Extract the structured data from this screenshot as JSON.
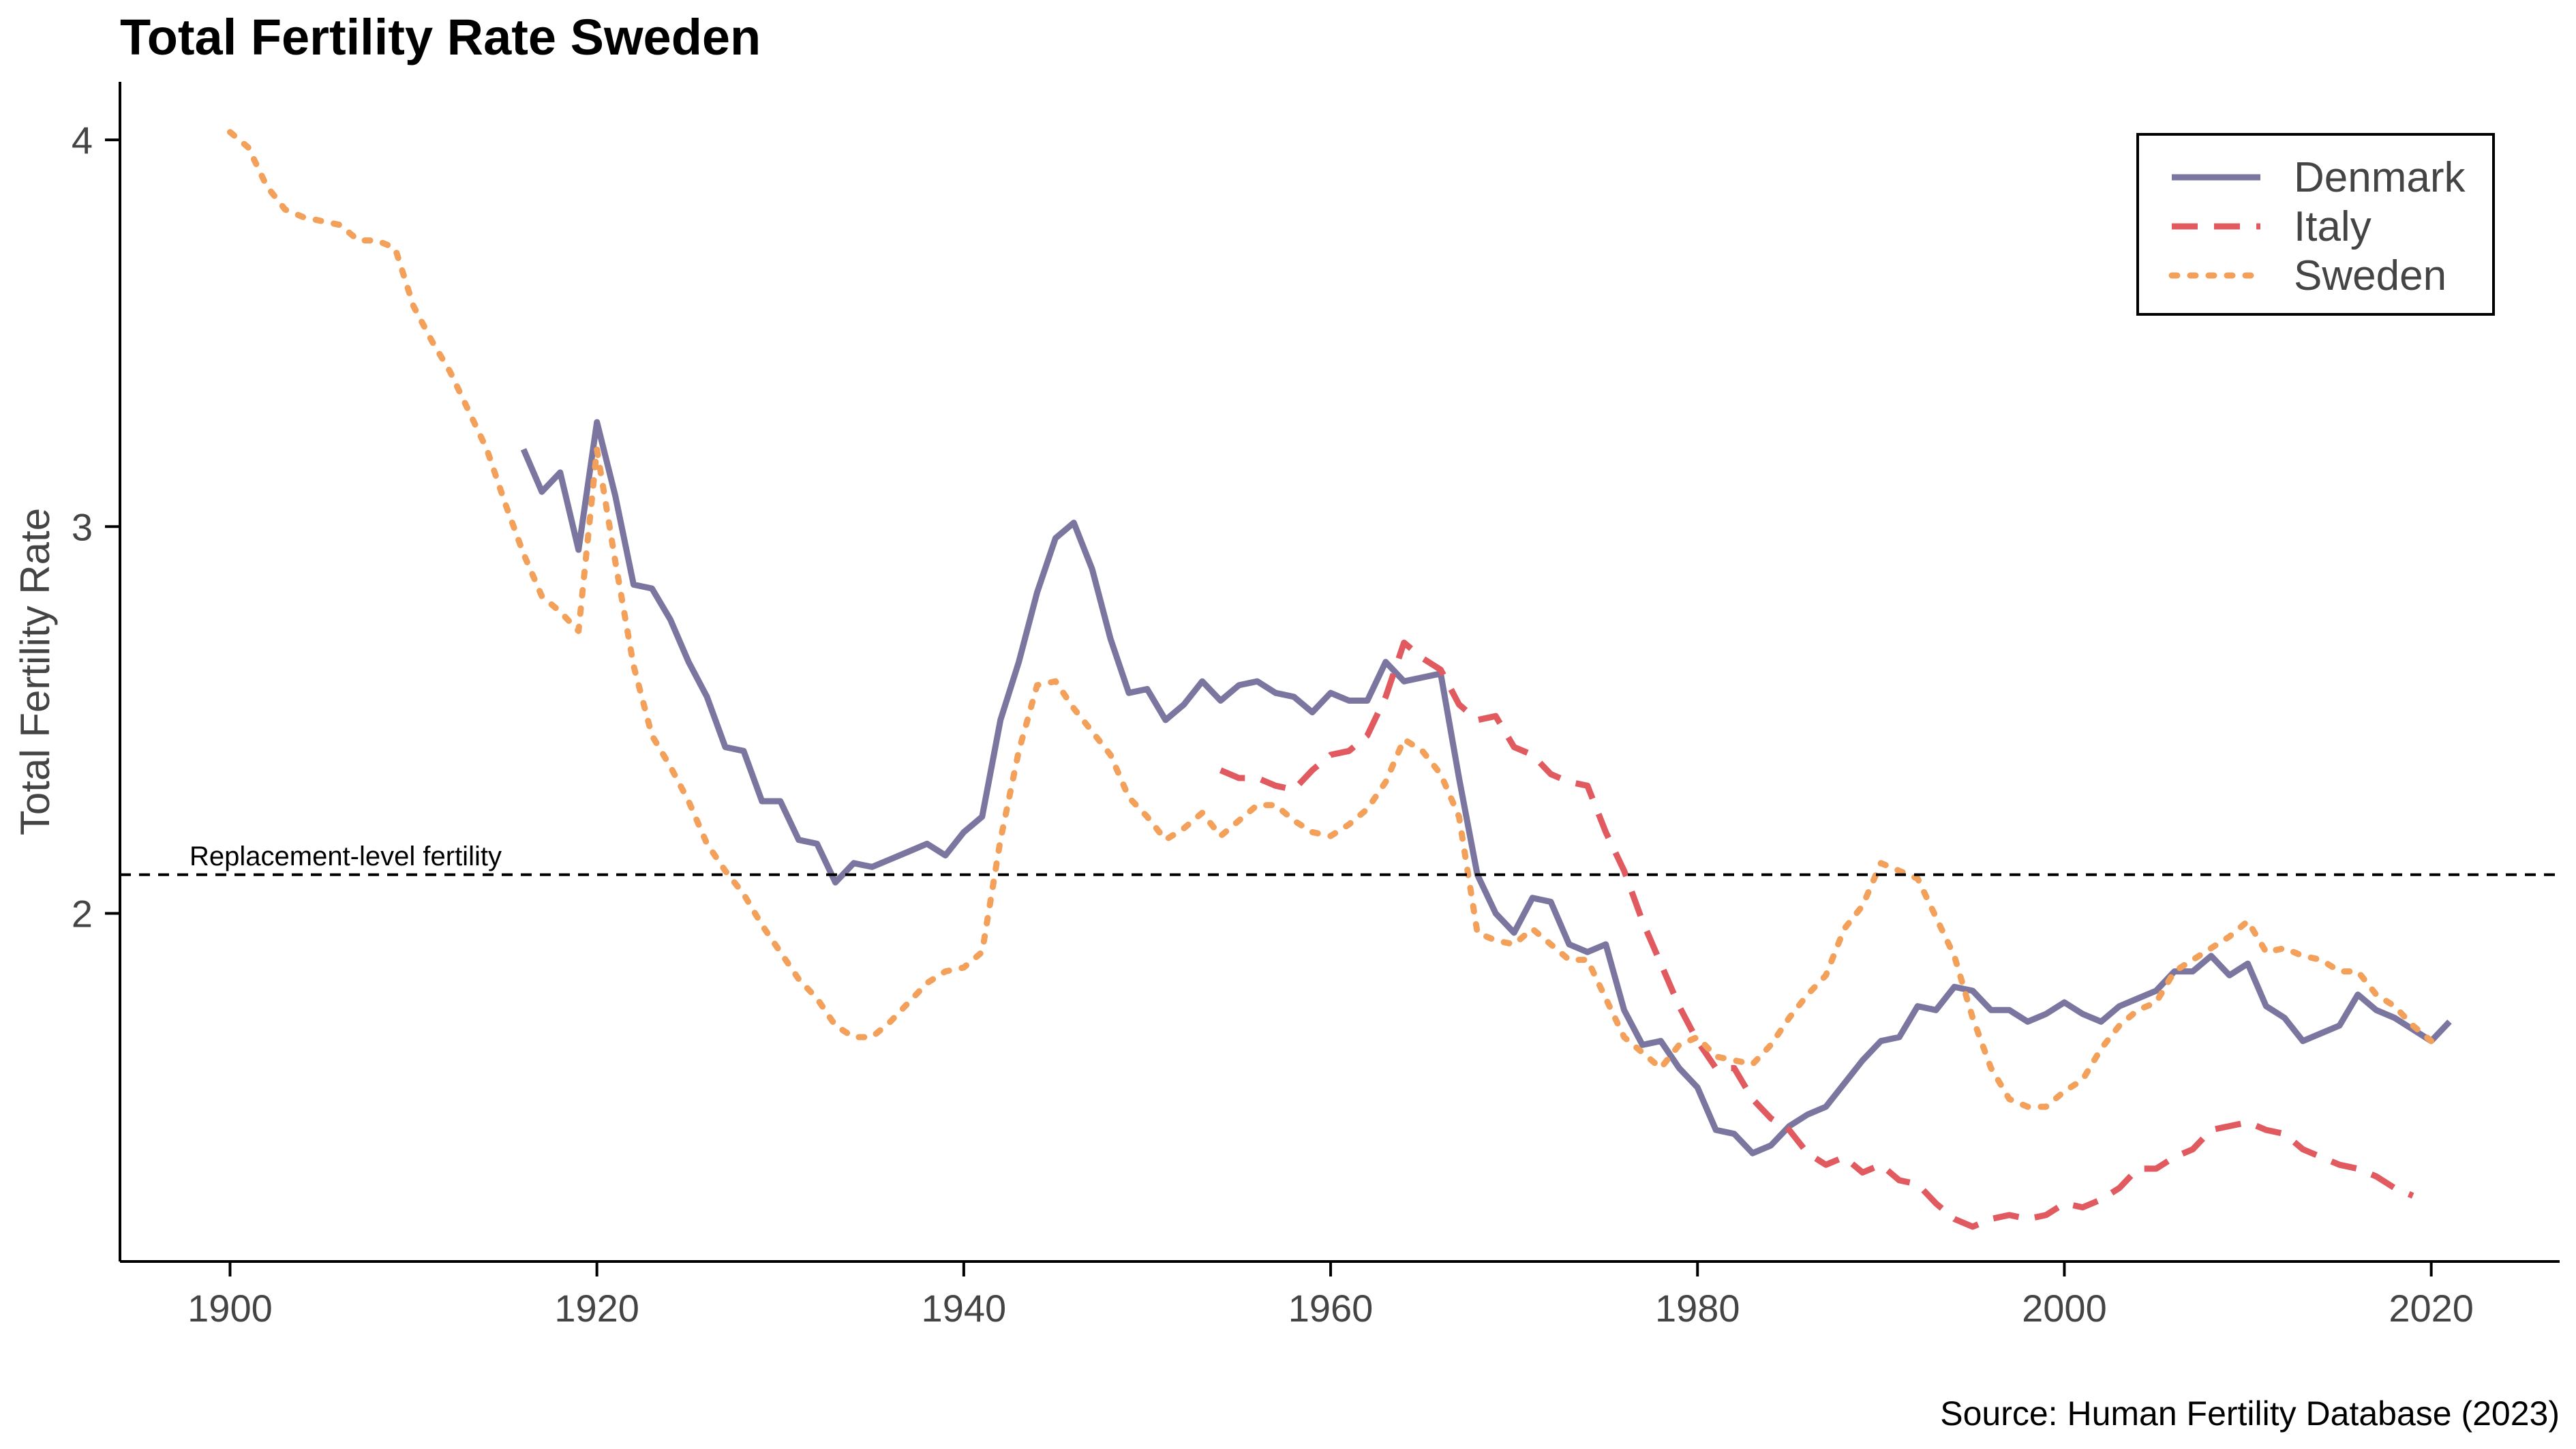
{
  "chart_data": {
    "type": "line",
    "title": "Total Fertility Rate Sweden",
    "xlabel": "",
    "ylabel": "Total Fertility Rate",
    "xlim": [
      1894,
      2027
    ],
    "ylim": [
      1.1,
      4.15
    ],
    "xticks": [
      1900,
      1920,
      1940,
      1960,
      1980,
      2000,
      2020
    ],
    "yticks": [
      2,
      3,
      4
    ],
    "grid": false,
    "legend_position": "top-right",
    "reference_line": {
      "y": 2.1,
      "label": "Replacement-level fertility"
    },
    "source": "Source: Human Fertility Database (2023)",
    "series": [
      {
        "name": "Denmark",
        "color": "#7b76a0",
        "style": "solid",
        "x": [
          1916,
          1917,
          1918,
          1919,
          1920,
          1921,
          1922,
          1923,
          1924,
          1925,
          1926,
          1927,
          1928,
          1929,
          1930,
          1931,
          1932,
          1933,
          1934,
          1935,
          1936,
          1937,
          1938,
          1939,
          1940,
          1941,
          1942,
          1943,
          1944,
          1945,
          1946,
          1947,
          1948,
          1949,
          1950,
          1951,
          1952,
          1953,
          1954,
          1955,
          1956,
          1957,
          1958,
          1959,
          1960,
          1961,
          1962,
          1963,
          1964,
          1965,
          1966,
          1967,
          1968,
          1969,
          1970,
          1971,
          1972,
          1973,
          1974,
          1975,
          1976,
          1977,
          1978,
          1979,
          1980,
          1981,
          1982,
          1983,
          1984,
          1985,
          1986,
          1987,
          1988,
          1989,
          1990,
          1991,
          1992,
          1993,
          1994,
          1995,
          1996,
          1997,
          1998,
          1999,
          2000,
          2001,
          2002,
          2003,
          2004,
          2005,
          2006,
          2007,
          2008,
          2009,
          2010,
          2011,
          2012,
          2013,
          2014,
          2015,
          2016,
          2017,
          2018,
          2019,
          2020,
          2021
        ],
        "y": [
          3.2,
          3.09,
          3.14,
          2.94,
          3.27,
          3.08,
          2.85,
          2.84,
          2.76,
          2.65,
          2.56,
          2.43,
          2.42,
          2.29,
          2.29,
          2.19,
          2.18,
          2.08,
          2.13,
          2.12,
          2.14,
          2.16,
          2.18,
          2.15,
          2.21,
          2.25,
          2.5,
          2.65,
          2.83,
          2.97,
          3.01,
          2.89,
          2.71,
          2.57,
          2.58,
          2.5,
          2.54,
          2.6,
          2.55,
          2.59,
          2.6,
          2.57,
          2.56,
          2.52,
          2.57,
          2.55,
          2.55,
          2.65,
          2.6,
          2.61,
          2.62,
          2.35,
          2.1,
          2.0,
          1.95,
          2.04,
          2.03,
          1.92,
          1.9,
          1.92,
          1.75,
          1.66,
          1.67,
          1.6,
          1.55,
          1.44,
          1.43,
          1.38,
          1.4,
          1.45,
          1.48,
          1.5,
          1.56,
          1.62,
          1.67,
          1.68,
          1.76,
          1.75,
          1.81,
          1.8,
          1.75,
          1.75,
          1.72,
          1.74,
          1.77,
          1.74,
          1.72,
          1.76,
          1.78,
          1.8,
          1.85,
          1.85,
          1.89,
          1.84,
          1.87,
          1.76,
          1.73,
          1.67,
          1.69,
          1.71,
          1.79,
          1.75,
          1.73,
          1.7,
          1.67,
          1.72
        ]
      },
      {
        "name": "Italy",
        "color": "#e05a5f",
        "style": "dashed",
        "x": [
          1954,
          1955,
          1956,
          1957,
          1958,
          1959,
          1960,
          1961,
          1962,
          1963,
          1964,
          1965,
          1966,
          1967,
          1968,
          1969,
          1970,
          1971,
          1972,
          1973,
          1974,
          1975,
          1976,
          1977,
          1978,
          1979,
          1980,
          1981,
          1982,
          1983,
          1984,
          1985,
          1986,
          1987,
          1988,
          1989,
          1990,
          1991,
          1992,
          1993,
          1994,
          1995,
          1996,
          1997,
          1998,
          1999,
          2000,
          2001,
          2002,
          2003,
          2004,
          2005,
          2006,
          2007,
          2008,
          2009,
          2010,
          2011,
          2012,
          2013,
          2014,
          2015,
          2016,
          2017,
          2018,
          2019
        ],
        "y": [
          2.37,
          2.35,
          2.35,
          2.33,
          2.32,
          2.37,
          2.41,
          2.42,
          2.46,
          2.56,
          2.7,
          2.66,
          2.63,
          2.54,
          2.5,
          2.51,
          2.43,
          2.41,
          2.36,
          2.34,
          2.33,
          2.21,
          2.11,
          1.98,
          1.87,
          1.76,
          1.67,
          1.6,
          1.6,
          1.52,
          1.47,
          1.44,
          1.38,
          1.35,
          1.37,
          1.33,
          1.35,
          1.31,
          1.3,
          1.25,
          1.21,
          1.19,
          1.21,
          1.22,
          1.21,
          1.22,
          1.25,
          1.24,
          1.26,
          1.29,
          1.34,
          1.34,
          1.37,
          1.39,
          1.44,
          1.45,
          1.46,
          1.44,
          1.43,
          1.39,
          1.37,
          1.35,
          1.34,
          1.32,
          1.29,
          1.27
        ]
      },
      {
        "name": "Sweden",
        "color": "#f2a05a",
        "style": "dotted",
        "x": [
          1900,
          1901,
          1902,
          1903,
          1904,
          1905,
          1906,
          1907,
          1908,
          1909,
          1910,
          1911,
          1912,
          1913,
          1914,
          1915,
          1916,
          1917,
          1918,
          1919,
          1920,
          1921,
          1922,
          1923,
          1924,
          1925,
          1926,
          1927,
          1928,
          1929,
          1930,
          1931,
          1932,
          1933,
          1934,
          1935,
          1936,
          1937,
          1938,
          1939,
          1940,
          1941,
          1942,
          1943,
          1944,
          1945,
          1946,
          1947,
          1948,
          1949,
          1950,
          1951,
          1952,
          1953,
          1954,
          1955,
          1956,
          1957,
          1958,
          1959,
          1960,
          1961,
          1962,
          1963,
          1964,
          1965,
          1966,
          1967,
          1968,
          1969,
          1970,
          1971,
          1972,
          1973,
          1974,
          1975,
          1976,
          1977,
          1978,
          1979,
          1980,
          1981,
          1982,
          1983,
          1984,
          1985,
          1986,
          1987,
          1988,
          1989,
          1990,
          1991,
          1992,
          1993,
          1994,
          1995,
          1996,
          1997,
          1998,
          1999,
          2000,
          2001,
          2002,
          2003,
          2004,
          2005,
          2006,
          2007,
          2008,
          2009,
          2010,
          2011,
          2012,
          2013,
          2014,
          2015,
          2016,
          2017,
          2018,
          2019,
          2020
        ],
        "y": [
          4.02,
          3.98,
          3.88,
          3.82,
          3.8,
          3.79,
          3.78,
          3.74,
          3.74,
          3.72,
          3.57,
          3.48,
          3.4,
          3.3,
          3.2,
          3.06,
          2.93,
          2.82,
          2.78,
          2.73,
          3.2,
          2.91,
          2.64,
          2.46,
          2.38,
          2.29,
          2.18,
          2.11,
          2.05,
          1.97,
          1.9,
          1.83,
          1.78,
          1.71,
          1.68,
          1.68,
          1.72,
          1.77,
          1.82,
          1.85,
          1.86,
          1.9,
          2.19,
          2.42,
          2.59,
          2.6,
          2.53,
          2.47,
          2.41,
          2.3,
          2.25,
          2.19,
          2.22,
          2.26,
          2.2,
          2.24,
          2.28,
          2.28,
          2.24,
          2.21,
          2.2,
          2.23,
          2.27,
          2.34,
          2.45,
          2.42,
          2.36,
          2.25,
          1.95,
          1.93,
          1.92,
          1.96,
          1.92,
          1.88,
          1.88,
          1.78,
          1.68,
          1.64,
          1.6,
          1.66,
          1.68,
          1.63,
          1.62,
          1.61,
          1.66,
          1.73,
          1.79,
          1.84,
          1.96,
          2.02,
          2.13,
          2.11,
          2.09,
          1.99,
          1.89,
          1.73,
          1.6,
          1.52,
          1.5,
          1.5,
          1.54,
          1.57,
          1.65,
          1.71,
          1.75,
          1.77,
          1.85,
          1.88,
          1.91,
          1.94,
          1.98,
          1.9,
          1.91,
          1.89,
          1.88,
          1.85,
          1.85,
          1.79,
          1.76,
          1.71,
          1.67
        ]
      }
    ]
  }
}
